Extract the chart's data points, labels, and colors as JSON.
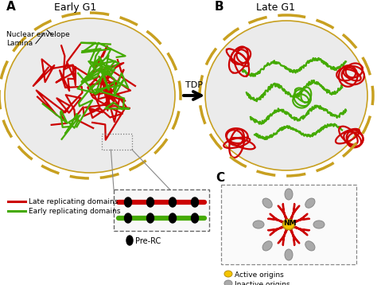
{
  "bg_color": "#ffffff",
  "nuclear_envelope_color": "#c8a020",
  "late_domain_color": "#cc0000",
  "early_domain_color": "#44aa00",
  "label_A": "A",
  "label_B": "B",
  "label_C": "C",
  "title_A": "Early G1",
  "title_B": "Late G1",
  "tdp_label": "TDP",
  "legend_late": "Late replicating domains",
  "legend_early": "Early replicating domains",
  "pre_rc_label": "Pre-RC",
  "nm_label": "NM",
  "active_origins_label": "Active origins",
  "inactive_origins_label": "Inactive origins",
  "active_origin_color": "#f5c500",
  "inactive_origin_color": "#aaaaaa",
  "inner_color": "#ebebeb"
}
